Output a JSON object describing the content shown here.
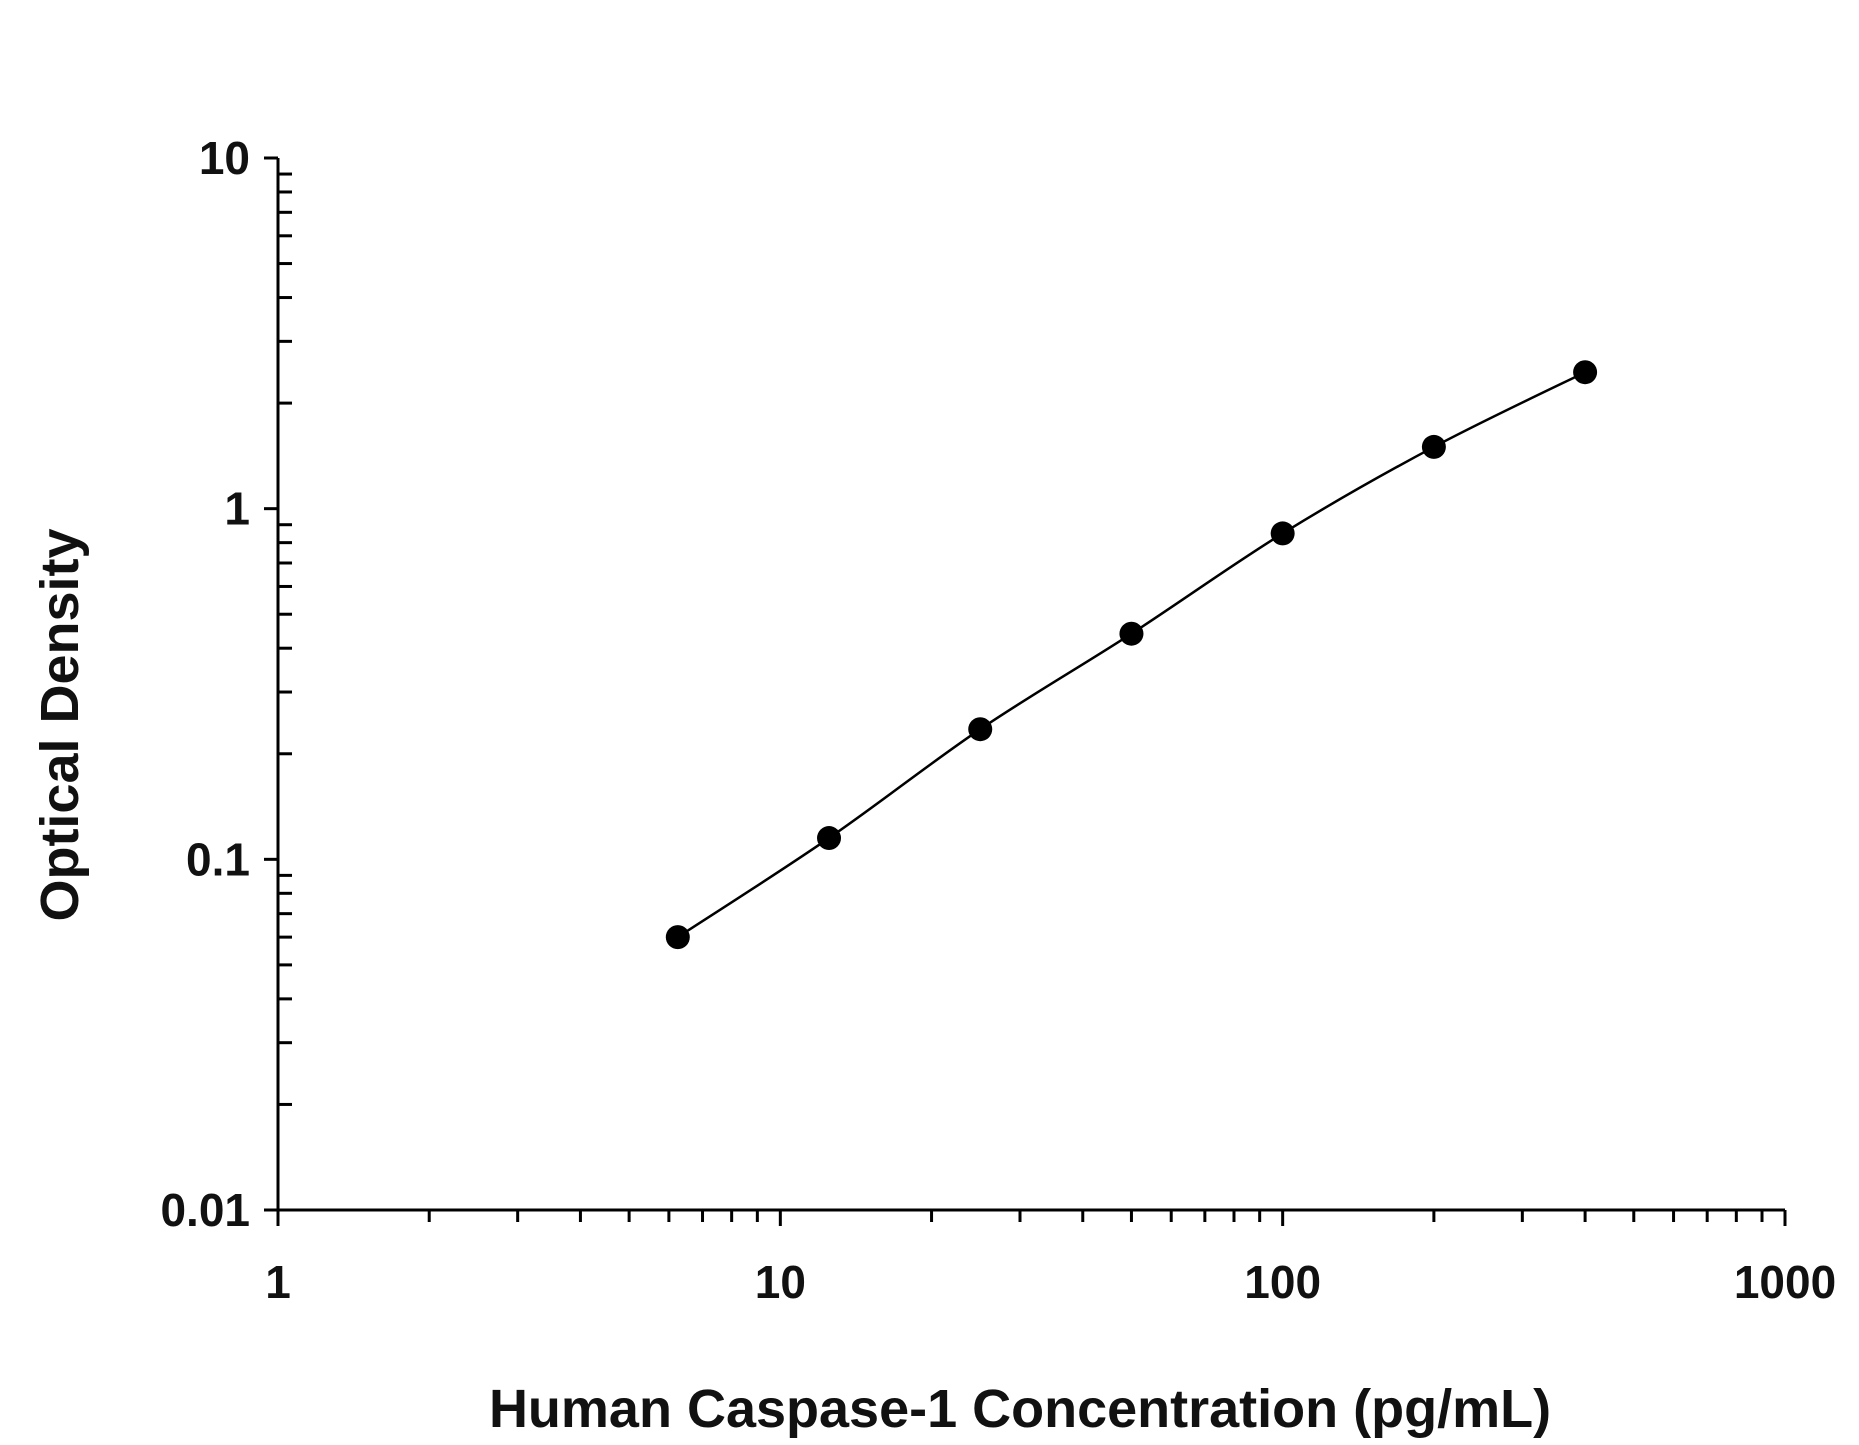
{
  "chart_data": {
    "type": "scatter",
    "title": "",
    "xlabel": "Human Caspase-1 Concentration (pg/mL)",
    "ylabel": "Optical Density",
    "xscale": "log",
    "yscale": "log",
    "xlim": [
      1,
      1000
    ],
    "ylim": [
      0.01,
      10
    ],
    "x_tick_labels": [
      "1",
      "10",
      "100",
      "1000"
    ],
    "y_tick_labels": [
      "0.01",
      "0.1",
      "1",
      "10"
    ],
    "grid": false,
    "legend": "none",
    "series": [
      {
        "points": [
          {
            "x": 6.25,
            "y": 0.06
          },
          {
            "x": 12.5,
            "y": 0.115
          },
          {
            "x": 25,
            "y": 0.235
          },
          {
            "x": 50,
            "y": 0.44
          },
          {
            "x": 100,
            "y": 0.85
          },
          {
            "x": 200,
            "y": 1.5
          },
          {
            "x": 400,
            "y": 2.45
          }
        ],
        "fit_curve": "smooth"
      }
    ],
    "colors": {
      "points": "#000000",
      "curve": "#000000",
      "axes": "#000000"
    }
  }
}
